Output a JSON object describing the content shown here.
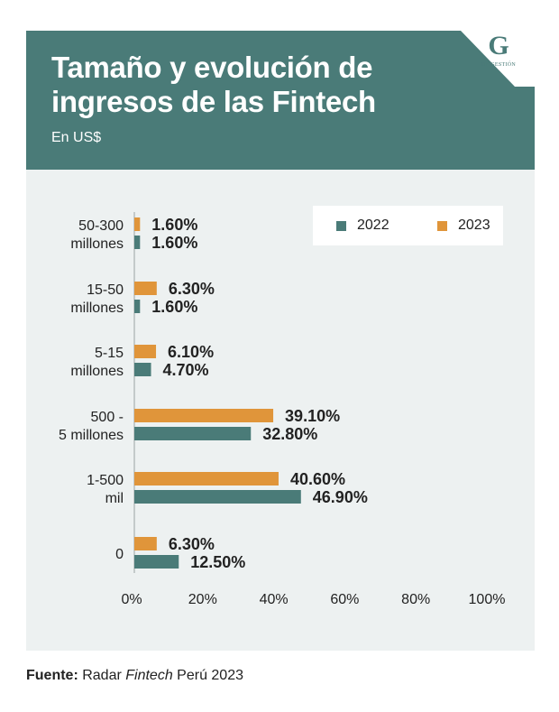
{
  "header": {
    "title_line1": "Tamaño y evolución de",
    "title_line2": "ingresos de las Fintech",
    "subtitle": "En US$"
  },
  "logo": {
    "letter": "G",
    "text": "DE GESTIÓN"
  },
  "colors": {
    "header_bg": "#4a7b78",
    "panel_bg": "#edf1f1",
    "series_2022": "#4a7b78",
    "series_2023": "#e0953a"
  },
  "chart_data": {
    "type": "bar",
    "orientation": "horizontal",
    "title": "Tamaño y evolución de ingresos de las Fintech",
    "subtitle": "En US$",
    "xlabel": "",
    "ylabel": "",
    "xlim": [
      0,
      100
    ],
    "x_ticks": [
      "0%",
      "20%",
      "40%",
      "60%",
      "80%",
      "100%"
    ],
    "categories": [
      {
        "line1": "50-300",
        "line2": "millones"
      },
      {
        "line1": "15-50",
        "line2": "millones"
      },
      {
        "line1": "5-15",
        "line2": "millones"
      },
      {
        "line1": "500 -",
        "line2": "5 millones"
      },
      {
        "line1": "1-500",
        "line2": "mil"
      },
      {
        "line1": "0",
        "line2": ""
      }
    ],
    "series": [
      {
        "name": "2023",
        "color": "#e0953a",
        "values": [
          1.6,
          6.3,
          6.1,
          39.1,
          40.6,
          6.3
        ],
        "labels": [
          "1.60%",
          "6.30%",
          "6.10%",
          "39.10%",
          "40.60%",
          "6.30%"
        ]
      },
      {
        "name": "2022",
        "color": "#4a7b78",
        "values": [
          1.6,
          1.6,
          4.7,
          32.8,
          46.9,
          12.5
        ],
        "labels": [
          "1.60%",
          "1.60%",
          "4.70%",
          "32.80%",
          "46.90%",
          "12.50%"
        ]
      }
    ],
    "legend": [
      {
        "name": "2022",
        "color": "#4a7b78"
      },
      {
        "name": "2023",
        "color": "#e0953a"
      }
    ],
    "legend_position": "top-right",
    "grid": false
  },
  "source": {
    "label": "Fuente:",
    "text_before": " Radar ",
    "text_italic": "Fintech",
    "text_after": " Perú 2023"
  }
}
